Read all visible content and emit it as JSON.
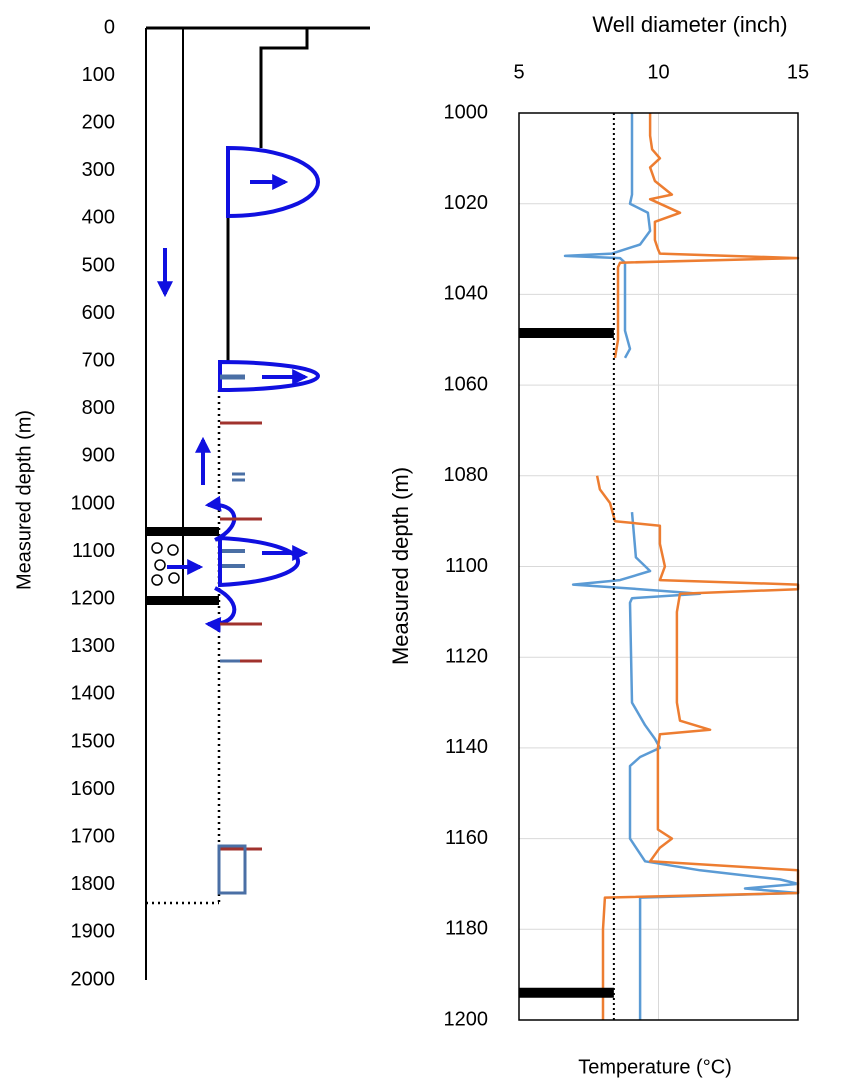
{
  "chart_data": [
    {
      "type": "schematic",
      "ylabel": "Measured depth (m)",
      "ylim": [
        0,
        2000
      ],
      "yticks": [
        0,
        100,
        200,
        300,
        400,
        500,
        600,
        700,
        800,
        900,
        1000,
        1100,
        1200,
        1300,
        1400,
        1500,
        1600,
        1700,
        1800,
        1900,
        2000
      ]
    },
    {
      "type": "line",
      "title": "Well diameter (inch)",
      "ylabel": "Measured depth (m)",
      "xlabel": "Temperature (°C)",
      "xlim": [
        5,
        15
      ],
      "xticks": [
        5,
        10,
        15
      ],
      "ylim": [
        1000,
        1200
      ],
      "yticks": [
        1000,
        1020,
        1040,
        1060,
        1080,
        1100,
        1120,
        1140,
        1160,
        1180,
        1200
      ],
      "grid": true,
      "reference_diameter": 8.4,
      "casing_shoes": [
        1048.5,
        1194
      ],
      "series": [
        {
          "color": "#5b9bd5",
          "depth": [
            1000,
            1018,
            1020,
            1022,
            1026,
            1029,
            1031,
            1031.5,
            1032,
            1033,
            1048,
            1052,
            1054,
            null,
            1088,
            1098,
            1101,
            1103,
            1104,
            1105,
            1106,
            1107,
            1108,
            1130,
            1135,
            1138,
            1140,
            1142,
            1144,
            1160,
            1165,
            1167,
            1168,
            1169,
            1170,
            1171,
            1172,
            1173,
            1200
          ],
          "values": [
            9.05,
            9.05,
            8.98,
            9.62,
            9.7,
            9.34,
            8.33,
            6.65,
            8.62,
            8.8,
            8.8,
            8.98,
            8.8,
            null,
            9.05,
            9.19,
            9.7,
            8.62,
            6.94,
            9.34,
            11.49,
            9.05,
            8.98,
            9.05,
            9.52,
            9.87,
            10.05,
            9.34,
            8.98,
            8.98,
            9.52,
            11.49,
            12.92,
            14.35,
            15,
            13.1,
            15,
            9.34,
            9.34
          ]
        },
        {
          "color": "#ed7d31",
          "depth": [
            1000,
            1005,
            1008,
            1010,
            1012,
            1015,
            1018,
            1019,
            1022,
            1024,
            1028,
            1030,
            1031,
            1032,
            1033,
            1034,
            1050,
            1054,
            null,
            1080,
            1083,
            1086,
            1090,
            1091,
            1095,
            1100,
            1103,
            1104,
            1105,
            1106,
            1110,
            1130,
            1134,
            1136,
            1137,
            1140,
            1158,
            1160,
            1162,
            1165,
            1167,
            1172,
            1173,
            1180,
            1200
          ],
          "values": [
            9.7,
            9.7,
            9.77,
            10.05,
            9.7,
            9.87,
            10.48,
            9.7,
            10.77,
            9.87,
            9.87,
            9.98,
            10.05,
            15,
            8.62,
            8.55,
            8.55,
            8.44,
            null,
            7.8,
            7.9,
            8.26,
            8.44,
            10.05,
            10.05,
            10.23,
            10.05,
            15,
            15,
            10.77,
            10.66,
            10.66,
            10.77,
            11.85,
            10.05,
            9.98,
            9.98,
            10.48,
            10.05,
            9.7,
            15,
            15,
            8.08,
            8.01,
            8.01
          ]
        }
      ]
    }
  ]
}
